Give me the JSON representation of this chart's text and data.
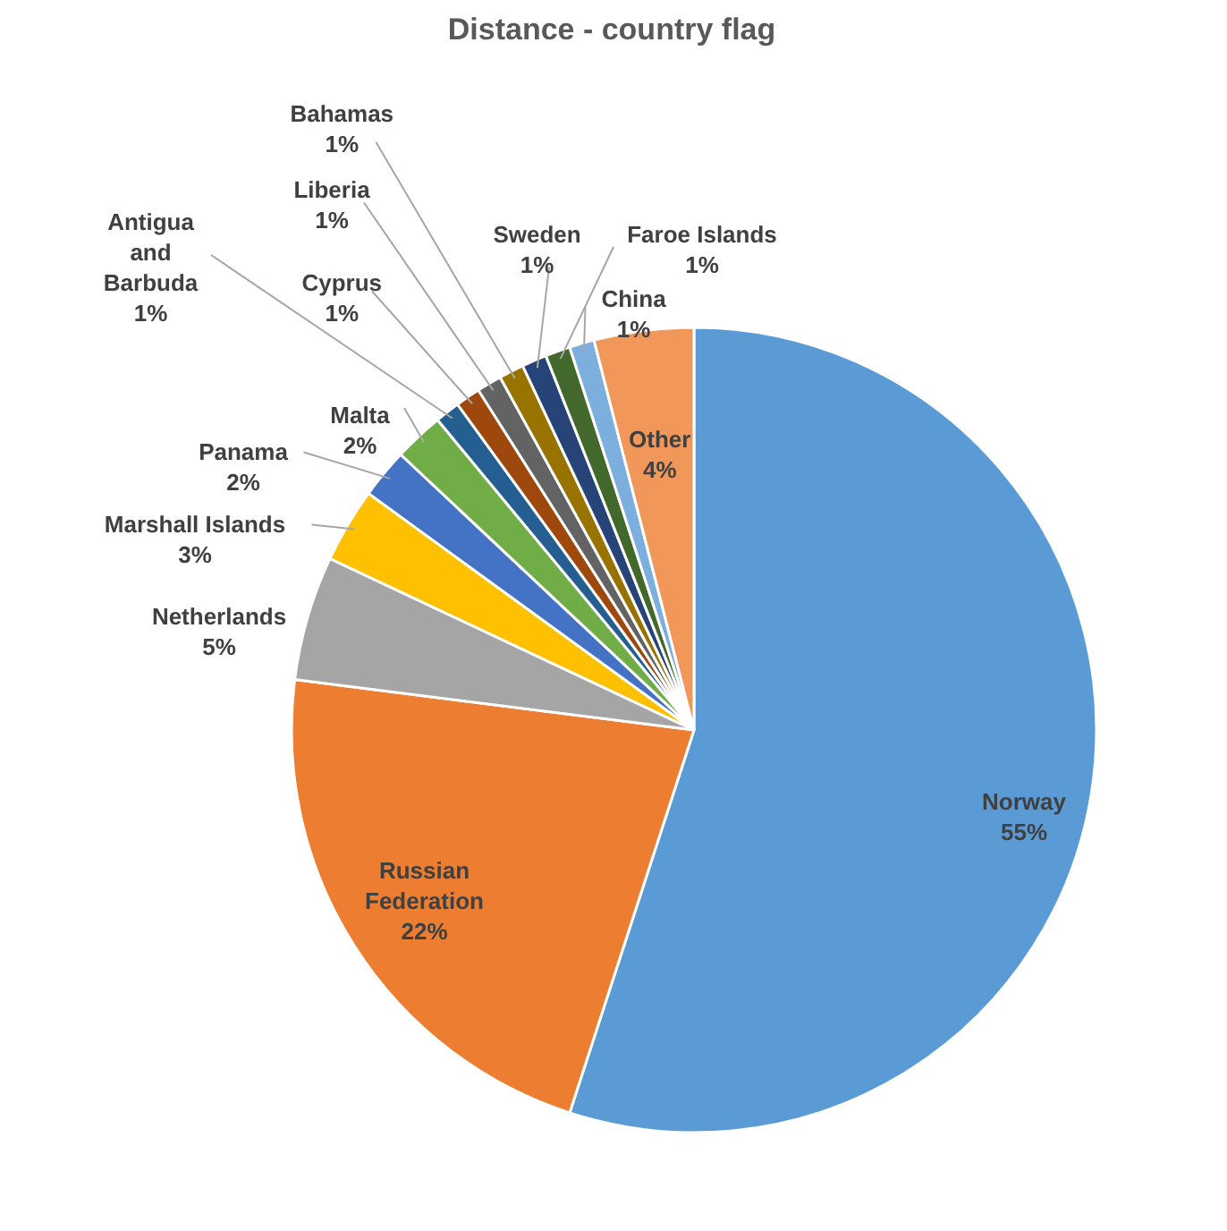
{
  "chart_data": {
    "type": "pie",
    "title": "Distance - country flag",
    "categories": [
      "Norway",
      "Russian Federation",
      "Netherlands",
      "Marshall Islands",
      "Panama",
      "Malta",
      "Antigua and Barbuda",
      "Cyprus",
      "Liberia",
      "Bahamas",
      "Sweden",
      "Faroe Islands",
      "China",
      "Other"
    ],
    "values": [
      55,
      22,
      5,
      3,
      2,
      2,
      1,
      1,
      1,
      1,
      1,
      1,
      1,
      4
    ],
    "colors": [
      "#5b9bd5",
      "#ed7d31",
      "#a5a5a5",
      "#ffc000",
      "#4472c4",
      "#70ad47",
      "#255e91",
      "#9e480e",
      "#636363",
      "#997300",
      "#264478",
      "#43682b",
      "#7cafdd",
      "#f1975a"
    ],
    "value_labels": [
      "55%",
      "22%",
      "5%",
      "3%",
      "2%",
      "2%",
      "1%",
      "1%",
      "1%",
      "1%",
      "1%",
      "1%",
      "1%",
      "4%"
    ]
  }
}
